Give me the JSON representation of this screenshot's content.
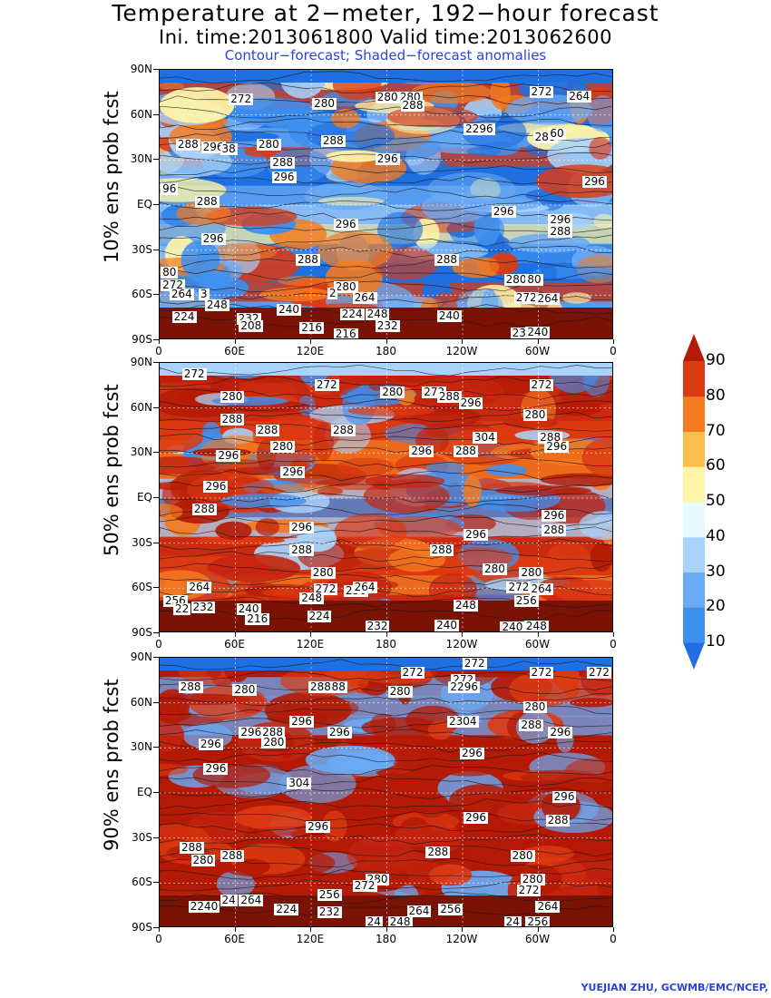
{
  "title": "Temperature at 2−meter, 192−hour forecast",
  "subtitle": "Ini. time:2013061800     Valid time:2013062600",
  "caption": "Contour−forecast; Shaded−forecast anomalies",
  "credit": "YUEJIAN ZHU, GCWMB/EMC/NCEP,",
  "lat_ticks": [
    "90N",
    "60N",
    "30N",
    "EQ",
    "30S",
    "60S",
    "90S"
  ],
  "lon_ticks": [
    "0",
    "60E",
    "120E",
    "180",
    "120W",
    "60W",
    "0"
  ],
  "colorbar": {
    "levels": [
      "10",
      "20",
      "30",
      "40",
      "50",
      "60",
      "70",
      "80",
      "90"
    ],
    "colors": [
      "#1f6fe0",
      "#3f8ff0",
      "#6aaaf5",
      "#a9d3fb",
      "#e5fbff",
      "#fff4a8",
      "#fbc04b",
      "#f47a1f",
      "#dc3a12",
      "#b41a06"
    ]
  },
  "panels": [
    {
      "ylabel": "10% ens prob fcst",
      "palette": [
        "#1f6fe0",
        "#3f8ff0",
        "#6aaaf5",
        "#a9d3fb",
        "#fff4a8",
        "#f47a1f",
        "#dc3a12"
      ],
      "contour_labels": [
        {
          "text": "272",
          "lon": 62,
          "lat": 70
        },
        {
          "text": "280",
          "lon": 128,
          "lat": 67
        },
        {
          "text": "280",
          "lon": 178,
          "lat": 71
        },
        {
          "text": "280",
          "lon": 196,
          "lat": 71
        },
        {
          "text": "288",
          "lon": 198,
          "lat": 66
        },
        {
          "text": "272",
          "lon": 300,
          "lat": 75
        },
        {
          "text": "264",
          "lon": 330,
          "lat": 72
        },
        {
          "text": "288",
          "lon": 20,
          "lat": 40
        },
        {
          "text": "296",
          "lon": 40,
          "lat": 38
        },
        {
          "text": "38",
          "lon": 55,
          "lat": 37
        },
        {
          "text": "280",
          "lon": 84,
          "lat": 40
        },
        {
          "text": "288",
          "lon": 135,
          "lat": 42
        },
        {
          "text": "2296",
          "lon": 248,
          "lat": 50
        },
        {
          "text": "288",
          "lon": 303,
          "lat": 45
        },
        {
          "text": "60",
          "lon": 315,
          "lat": 47
        },
        {
          "text": "288",
          "lon": 95,
          "lat": 28
        },
        {
          "text": "296",
          "lon": 96,
          "lat": 18
        },
        {
          "text": "296",
          "lon": 178,
          "lat": 30
        },
        {
          "text": "296",
          "lon": 342,
          "lat": 15
        },
        {
          "text": "96",
          "lon": 8,
          "lat": 10
        },
        {
          "text": "288",
          "lon": 35,
          "lat": 2
        },
        {
          "text": "296",
          "lon": 270,
          "lat": -5
        },
        {
          "text": "296",
          "lon": 315,
          "lat": -10
        },
        {
          "text": "288",
          "lon": 315,
          "lat": -18
        },
        {
          "text": "296",
          "lon": 145,
          "lat": -13
        },
        {
          "text": "296",
          "lon": 40,
          "lat": -23
        },
        {
          "text": "288",
          "lon": 115,
          "lat": -37
        },
        {
          "text": "288",
          "lon": 225,
          "lat": -37
        },
        {
          "text": "80",
          "lon": 8,
          "lat": -45
        },
        {
          "text": "280",
          "lon": 280,
          "lat": -50
        },
        {
          "text": "80",
          "lon": 297,
          "lat": -50
        },
        {
          "text": "272",
          "lon": 8,
          "lat": -54
        },
        {
          "text": "280",
          "lon": 145,
          "lat": -55
        },
        {
          "text": "2",
          "lon": 140,
          "lat": -59
        },
        {
          "text": "264",
          "lon": 160,
          "lat": -62
        },
        {
          "text": "272",
          "lon": 288,
          "lat": -62
        },
        {
          "text": "264",
          "lon": 305,
          "lat": -63
        },
        {
          "text": "264",
          "lon": 15,
          "lat": -60
        },
        {
          "text": "3",
          "lon": 38,
          "lat": -60
        },
        {
          "text": "248",
          "lon": 43,
          "lat": -67
        },
        {
          "text": "224",
          "lon": 17,
          "lat": -75
        },
        {
          "text": "232",
          "lon": 68,
          "lat": -76
        },
        {
          "text": "208",
          "lon": 70,
          "lat": -81
        },
        {
          "text": "240",
          "lon": 100,
          "lat": -70
        },
        {
          "text": "224",
          "lon": 150,
          "lat": -73
        },
        {
          "text": "248",
          "lon": 170,
          "lat": -73
        },
        {
          "text": "240",
          "lon": 227,
          "lat": -74
        },
        {
          "text": "232",
          "lon": 178,
          "lat": -81
        },
        {
          "text": "216",
          "lon": 118,
          "lat": -82
        },
        {
          "text": "216",
          "lon": 145,
          "lat": -89
        },
        {
          "text": "232",
          "lon": 285,
          "lat": -86
        },
        {
          "text": "240",
          "lon": 297,
          "lat": -85
        }
      ]
    },
    {
      "ylabel": "50% ens prob fcst",
      "palette": [
        "#dc3a12",
        "#b41a06",
        "#c52510",
        "#f47a1f",
        "#3f8ff0",
        "#a9d3fb",
        "#b41a06"
      ],
      "contour_labels": [
        {
          "text": "272",
          "lon": 25,
          "lat": 82
        },
        {
          "text": "272",
          "lon": 130,
          "lat": 75
        },
        {
          "text": "280",
          "lon": 55,
          "lat": 67
        },
        {
          "text": "280",
          "lon": 182,
          "lat": 70
        },
        {
          "text": "272",
          "lon": 215,
          "lat": 70
        },
        {
          "text": "288",
          "lon": 227,
          "lat": 67
        },
        {
          "text": "296",
          "lon": 244,
          "lat": 63
        },
        {
          "text": "272",
          "lon": 300,
          "lat": 75
        },
        {
          "text": "288",
          "lon": 55,
          "lat": 52
        },
        {
          "text": "288",
          "lon": 83,
          "lat": 45
        },
        {
          "text": "288",
          "lon": 143,
          "lat": 45
        },
        {
          "text": "280",
          "lon": 295,
          "lat": 55
        },
        {
          "text": "304",
          "lon": 255,
          "lat": 40
        },
        {
          "text": "288",
          "lon": 307,
          "lat": 40
        },
        {
          "text": "296",
          "lon": 312,
          "lat": 34
        },
        {
          "text": "280",
          "lon": 95,
          "lat": 34
        },
        {
          "text": "296",
          "lon": 205,
          "lat": 31
        },
        {
          "text": "288",
          "lon": 240,
          "lat": 31
        },
        {
          "text": "296",
          "lon": 52,
          "lat": 28
        },
        {
          "text": "296",
          "lon": 103,
          "lat": 17
        },
        {
          "text": "296",
          "lon": 42,
          "lat": 7
        },
        {
          "text": "288",
          "lon": 33,
          "lat": -8
        },
        {
          "text": "296",
          "lon": 310,
          "lat": -12
        },
        {
          "text": "288",
          "lon": 310,
          "lat": -22
        },
        {
          "text": "296",
          "lon": 110,
          "lat": -20
        },
        {
          "text": "296",
          "lon": 248,
          "lat": -25
        },
        {
          "text": "288",
          "lon": 110,
          "lat": -35
        },
        {
          "text": "288",
          "lon": 221,
          "lat": -35
        },
        {
          "text": "280",
          "lon": 127,
          "lat": -50
        },
        {
          "text": "280",
          "lon": 263,
          "lat": -48
        },
        {
          "text": "280",
          "lon": 292,
          "lat": -50
        },
        {
          "text": "264",
          "lon": 29,
          "lat": -60
        },
        {
          "text": "272",
          "lon": 129,
          "lat": -61
        },
        {
          "text": "256",
          "lon": 153,
          "lat": -62
        },
        {
          "text": "264",
          "lon": 160,
          "lat": -60
        },
        {
          "text": "272",
          "lon": 282,
          "lat": -60
        },
        {
          "text": "264",
          "lon": 300,
          "lat": -61
        },
        {
          "text": "256",
          "lon": 288,
          "lat": -69
        },
        {
          "text": "256",
          "lon": 10,
          "lat": -69
        },
        {
          "text": "22",
          "lon": 18,
          "lat": -74
        },
        {
          "text": "232",
          "lon": 32,
          "lat": -73
        },
        {
          "text": "240",
          "lon": 68,
          "lat": -74
        },
        {
          "text": "216",
          "lon": 75,
          "lat": -81
        },
        {
          "text": "248",
          "lon": 118,
          "lat": -67
        },
        {
          "text": "224",
          "lon": 124,
          "lat": -79
        },
        {
          "text": "248",
          "lon": 240,
          "lat": -72
        },
        {
          "text": "232",
          "lon": 170,
          "lat": -86
        },
        {
          "text": "240",
          "lon": 225,
          "lat": -85
        },
        {
          "text": "240",
          "lon": 277,
          "lat": -87
        },
        {
          "text": "248",
          "lon": 296,
          "lat": -86
        }
      ]
    },
    {
      "ylabel": "90% ens prob fcst",
      "palette": [
        "#b41a06",
        "#b41a06",
        "#c52510",
        "#dc3a12",
        "#b41a06",
        "#6aaaf5",
        "#b41a06"
      ],
      "contour_labels": [
        {
          "text": "288",
          "lon": 22,
          "lat": 70
        },
        {
          "text": "280",
          "lon": 65,
          "lat": 68
        },
        {
          "text": "288",
          "lon": 125,
          "lat": 70
        },
        {
          "text": "88",
          "lon": 142,
          "lat": 70
        },
        {
          "text": "272",
          "lon": 198,
          "lat": 80
        },
        {
          "text": "272",
          "lon": 247,
          "lat": 89
        },
        {
          "text": "272",
          "lon": 238,
          "lat": 75
        },
        {
          "text": "280",
          "lon": 188,
          "lat": 67
        },
        {
          "text": "2296",
          "lon": 236,
          "lat": 70
        },
        {
          "text": "272",
          "lon": 300,
          "lat": 80
        },
        {
          "text": "272",
          "lon": 352,
          "lat": 80
        },
        {
          "text": "280",
          "lon": 295,
          "lat": 57
        },
        {
          "text": "288",
          "lon": 87,
          "lat": 40
        },
        {
          "text": "296",
          "lon": 110,
          "lat": 47
        },
        {
          "text": "296",
          "lon": 70,
          "lat": 40
        },
        {
          "text": "280",
          "lon": 88,
          "lat": 33
        },
        {
          "text": "296",
          "lon": 140,
          "lat": 40
        },
        {
          "text": "2304",
          "lon": 235,
          "lat": 47
        },
        {
          "text": "288",
          "lon": 292,
          "lat": 45
        },
        {
          "text": "296",
          "lon": 315,
          "lat": 40
        },
        {
          "text": "296",
          "lon": 38,
          "lat": 32
        },
        {
          "text": "296",
          "lon": 245,
          "lat": 26
        },
        {
          "text": "296",
          "lon": 42,
          "lat": 16
        },
        {
          "text": "304",
          "lon": 108,
          "lat": 6
        },
        {
          "text": "296",
          "lon": 318,
          "lat": -3
        },
        {
          "text": "296",
          "lon": 123,
          "lat": -23
        },
        {
          "text": "288",
          "lon": 313,
          "lat": -19
        },
        {
          "text": "296",
          "lon": 248,
          "lat": -17
        },
        {
          "text": "288",
          "lon": 23,
          "lat": -37
        },
        {
          "text": "280",
          "lon": 32,
          "lat": -45
        },
        {
          "text": "288",
          "lon": 55,
          "lat": -42
        },
        {
          "text": "288",
          "lon": 218,
          "lat": -40
        },
        {
          "text": "280",
          "lon": 285,
          "lat": -42
        },
        {
          "text": "280",
          "lon": 170,
          "lat": -58
        },
        {
          "text": "272",
          "lon": 160,
          "lat": -62
        },
        {
          "text": "280",
          "lon": 293,
          "lat": -58
        },
        {
          "text": "272",
          "lon": 290,
          "lat": -65
        },
        {
          "text": "256",
          "lon": 132,
          "lat": -68
        },
        {
          "text": "264",
          "lon": 305,
          "lat": -76
        },
        {
          "text": "2240",
          "lon": 30,
          "lat": -76
        },
        {
          "text": "24",
          "lon": 55,
          "lat": -72
        },
        {
          "text": "264",
          "lon": 70,
          "lat": -72
        },
        {
          "text": "224",
          "lon": 98,
          "lat": -78
        },
        {
          "text": "232",
          "lon": 132,
          "lat": -80
        },
        {
          "text": "264",
          "lon": 203,
          "lat": -79
        },
        {
          "text": "256",
          "lon": 228,
          "lat": -78
        },
        {
          "text": "24",
          "lon": 170,
          "lat": -87
        },
        {
          "text": "248",
          "lon": 188,
          "lat": -87
        },
        {
          "text": "256",
          "lon": 297,
          "lat": -87
        },
        {
          "text": "24",
          "lon": 280,
          "lat": -88
        }
      ]
    }
  ]
}
